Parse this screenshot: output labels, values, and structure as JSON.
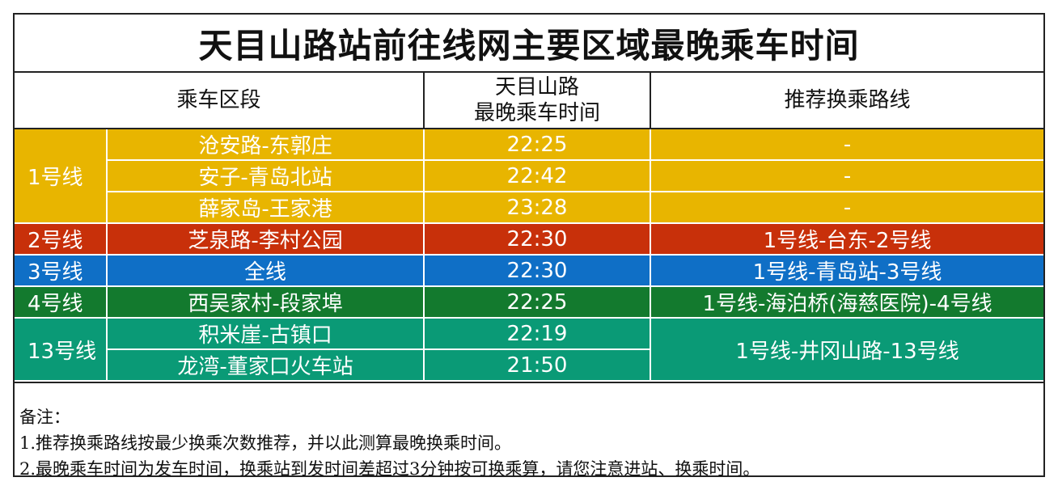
{
  "title": "天目山路站前往线网主要区域最晚乘车时间",
  "headers": {
    "segment": "乘车区段",
    "time_line1": "天目山路",
    "time_line2": "最晚乘车时间",
    "transfer": "推荐换乘路线"
  },
  "lines": {
    "l1": {
      "name": "1号线",
      "color": "#e8b500",
      "rows": [
        {
          "segment": "沧安路-东郭庄",
          "time": "22:25",
          "transfer": "-"
        },
        {
          "segment": "安子-青岛北站",
          "time": "22:42",
          "transfer": "-"
        },
        {
          "segment": "薛家岛-王家港",
          "time": "23:28",
          "transfer": "-"
        }
      ]
    },
    "l2": {
      "name": "2号线",
      "color": "#c8300a",
      "rows": [
        {
          "segment": "芝泉路-李村公园",
          "time": "22:30",
          "transfer": "1号线-台东-2号线"
        }
      ]
    },
    "l3": {
      "name": "3号线",
      "color": "#0f6fc6",
      "rows": [
        {
          "segment": "全线",
          "time": "22:30",
          "transfer": "1号线-青岛站-3号线"
        }
      ]
    },
    "l4": {
      "name": "4号线",
      "color": "#137a2e",
      "rows": [
        {
          "segment": "西吴家村-段家埠",
          "time": "22:25",
          "transfer": "1号线-海泊桥(海慈医院)-4号线"
        }
      ]
    },
    "l13": {
      "name": "13号线",
      "color": "#0a9a76",
      "transfer": "1号线-井冈山路-13号线",
      "rows": [
        {
          "segment": "积米崖-古镇口",
          "time": "22:19"
        },
        {
          "segment": "龙湾-董家口火车站",
          "time": "21:50"
        }
      ]
    }
  },
  "notes": {
    "heading": "备注：",
    "items": [
      "1.推荐换乘路线按最少换乘次数推荐，并以此测算最晚换乘时间。",
      "2.最晚乘车时间为发车时间，换乘站到发时间差超过3分钟按可换乘算，请您注意进站、换乘时间。"
    ]
  }
}
